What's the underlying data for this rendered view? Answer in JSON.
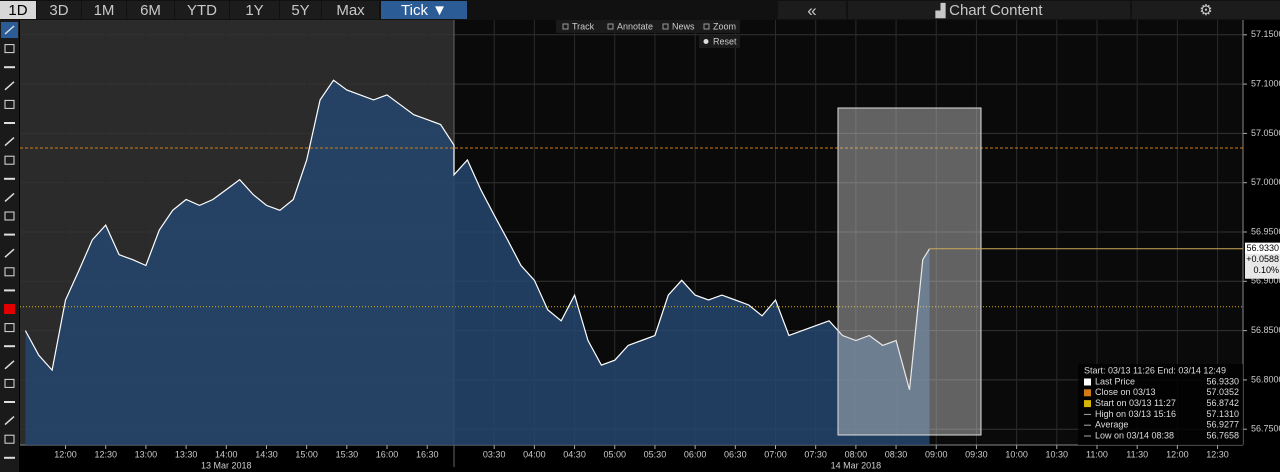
{
  "toolbar": {
    "ranges": [
      "1D",
      "3D",
      "1M",
      "6M",
      "YTD",
      "1Y",
      "5Y",
      "Max"
    ],
    "tick_button": "Tick",
    "collapse": "«",
    "chart_content": "Chart Content"
  },
  "chart_tools": [
    "Track",
    "Annotate",
    "News",
    "Zoom"
  ],
  "reset": "Reset",
  "chart_data": {
    "type": "area",
    "x": [
      "2018-03-13T11:30",
      "2018-03-13T11:40",
      "2018-03-13T11:50",
      "2018-03-13T12:00",
      "2018-03-13T12:10",
      "2018-03-13T12:20",
      "2018-03-13T12:30",
      "2018-03-13T12:40",
      "2018-03-13T12:50",
      "2018-03-13T13:00",
      "2018-03-13T13:10",
      "2018-03-13T13:20",
      "2018-03-13T13:30",
      "2018-03-13T13:40",
      "2018-03-13T13:50",
      "2018-03-13T14:00",
      "2018-03-13T14:10",
      "2018-03-13T14:20",
      "2018-03-13T14:30",
      "2018-03-13T14:40",
      "2018-03-13T14:50",
      "2018-03-13T15:00",
      "2018-03-13T15:10",
      "2018-03-13T15:20",
      "2018-03-13T15:30",
      "2018-03-13T15:40",
      "2018-03-13T15:50",
      "2018-03-13T16:00",
      "2018-03-13T16:10",
      "2018-03-13T16:20",
      "2018-03-13T16:30",
      "2018-03-13T16:40",
      "2018-03-13T16:50",
      "2018-03-14T03:00",
      "2018-03-14T03:10",
      "2018-03-14T03:20",
      "2018-03-14T03:30",
      "2018-03-14T03:40",
      "2018-03-14T03:50",
      "2018-03-14T04:00",
      "2018-03-14T04:10",
      "2018-03-14T04:20",
      "2018-03-14T04:30",
      "2018-03-14T04:40",
      "2018-03-14T04:50",
      "2018-03-14T05:00",
      "2018-03-14T05:10",
      "2018-03-14T05:20",
      "2018-03-14T05:30",
      "2018-03-14T05:40",
      "2018-03-14T05:50",
      "2018-03-14T06:00",
      "2018-03-14T06:10",
      "2018-03-14T06:20",
      "2018-03-14T06:30",
      "2018-03-14T06:40",
      "2018-03-14T06:50",
      "2018-03-14T07:00",
      "2018-03-14T07:10",
      "2018-03-14T07:20",
      "2018-03-14T07:30",
      "2018-03-14T07:40",
      "2018-03-14T07:50",
      "2018-03-14T08:00",
      "2018-03-14T08:10",
      "2018-03-14T08:20",
      "2018-03-14T08:30",
      "2018-03-14T08:40",
      "2018-03-14T08:50",
      "2018-03-14T08:55"
    ],
    "series": [
      {
        "name": "Last Price",
        "color": "#ffffff",
        "fill": "#24476e",
        "values": [
          56.85,
          56.825,
          56.81,
          56.881,
          56.911,
          56.942,
          56.957,
          56.927,
          56.922,
          56.916,
          56.952,
          56.972,
          56.983,
          56.977,
          56.983,
          56.993,
          57.003,
          56.988,
          56.977,
          56.972,
          56.983,
          57.023,
          57.084,
          57.104,
          57.094,
          57.089,
          57.084,
          57.089,
          57.079,
          57.069,
          57.064,
          57.059,
          57.038,
          57.008,
          57.023,
          56.993,
          56.967,
          56.942,
          56.916,
          56.901,
          56.871,
          56.86,
          56.886,
          56.84,
          56.815,
          56.82,
          56.835,
          56.84,
          56.845,
          56.886,
          56.901,
          56.886,
          56.881,
          56.886,
          56.881,
          56.876,
          56.865,
          56.881,
          56.845,
          56.85,
          56.855,
          56.86,
          56.845,
          56.84,
          56.845,
          56.835,
          56.84,
          56.79,
          56.922,
          56.933
        ]
      }
    ],
    "xlim": [
      "2018-03-13T11:26",
      "2018-03-14T12:49"
    ],
    "axis_break": [
      "2018-03-13T16:50",
      "2018-03-14T03:00"
    ],
    "xticks": [
      {
        "value": "2018-03-13T12:00",
        "label": "12:00"
      },
      {
        "value": "2018-03-13T12:30",
        "label": "12:30"
      },
      {
        "value": "2018-03-13T13:00",
        "label": "13:00"
      },
      {
        "value": "2018-03-13T13:30",
        "label": "13:30"
      },
      {
        "value": "2018-03-13T14:00",
        "label": "14:00"
      },
      {
        "value": "2018-03-13T14:30",
        "label": "14:30"
      },
      {
        "value": "2018-03-13T15:00",
        "label": "15:00"
      },
      {
        "value": "2018-03-13T15:30",
        "label": "15:30"
      },
      {
        "value": "2018-03-13T16:00",
        "label": "16:00"
      },
      {
        "value": "2018-03-13T16:30",
        "label": "16:30"
      },
      {
        "value": "2018-03-14T03:30",
        "label": "03:30"
      },
      {
        "value": "2018-03-14T04:00",
        "label": "04:00"
      },
      {
        "value": "2018-03-14T04:30",
        "label": "04:30"
      },
      {
        "value": "2018-03-14T05:00",
        "label": "05:00"
      },
      {
        "value": "2018-03-14T05:30",
        "label": "05:30"
      },
      {
        "value": "2018-03-14T06:00",
        "label": "06:00"
      },
      {
        "value": "2018-03-14T06:30",
        "label": "06:30"
      },
      {
        "value": "2018-03-14T07:00",
        "label": "07:00"
      },
      {
        "value": "2018-03-14T07:30",
        "label": "07:30"
      },
      {
        "value": "2018-03-14T08:00",
        "label": "08:00"
      },
      {
        "value": "2018-03-14T08:30",
        "label": "08:30"
      },
      {
        "value": "2018-03-14T09:00",
        "label": "09:00"
      },
      {
        "value": "2018-03-14T09:30",
        "label": "09:30"
      },
      {
        "value": "2018-03-14T10:00",
        "label": "10:00"
      },
      {
        "value": "2018-03-14T10:30",
        "label": "10:30"
      },
      {
        "value": "2018-03-14T11:00",
        "label": "11:00"
      },
      {
        "value": "2018-03-14T11:30",
        "label": "11:30"
      },
      {
        "value": "2018-03-14T12:00",
        "label": "12:00"
      },
      {
        "value": "2018-03-14T12:30",
        "label": "12:30"
      }
    ],
    "date_ticks": [
      {
        "value": "2018-03-13T14:00",
        "label": "13 Mar 2018"
      },
      {
        "value": "2018-03-14T08:00",
        "label": "14 Mar 2018"
      }
    ],
    "ylim": [
      56.734,
      57.165
    ],
    "yticks": [
      {
        "value": 56.75,
        "label": "56.7500"
      },
      {
        "value": 56.8,
        "label": "56.8000"
      },
      {
        "value": 56.85,
        "label": "56.8500"
      },
      {
        "value": 56.9,
        "label": "56.9000"
      },
      {
        "value": 56.95,
        "label": "56.9500"
      },
      {
        "value": 57,
        "label": "57.0000"
      },
      {
        "value": 57.05,
        "label": "57.0500"
      },
      {
        "value": 57.1,
        "label": "57.1000"
      },
      {
        "value": 57.15,
        "label": "57.1500"
      }
    ],
    "grid": true,
    "legend_title": "Start: 03/13 11:26 End: 03/14 12:49",
    "stats": [
      {
        "label": "Last Price",
        "value": 56.933,
        "value_label": "56.9330",
        "color": "#ffffff"
      },
      {
        "label": "Close on 03/13",
        "value": 57.0352,
        "color": "#d07c16"
      },
      {
        "label": "Start on 03/13 11:27",
        "value": 56.8742,
        "color": "#d8b400"
      },
      {
        "label": "High on 03/13 15:16",
        "value": 57.131,
        "value_label": "57.1310"
      },
      {
        "label": "Average",
        "value": 56.9277
      },
      {
        "label": "Low on 03/14 08:38",
        "value": 56.7658
      }
    ],
    "price_tag": {
      "change": "+0.0588",
      "percent": "0.10%"
    }
  }
}
